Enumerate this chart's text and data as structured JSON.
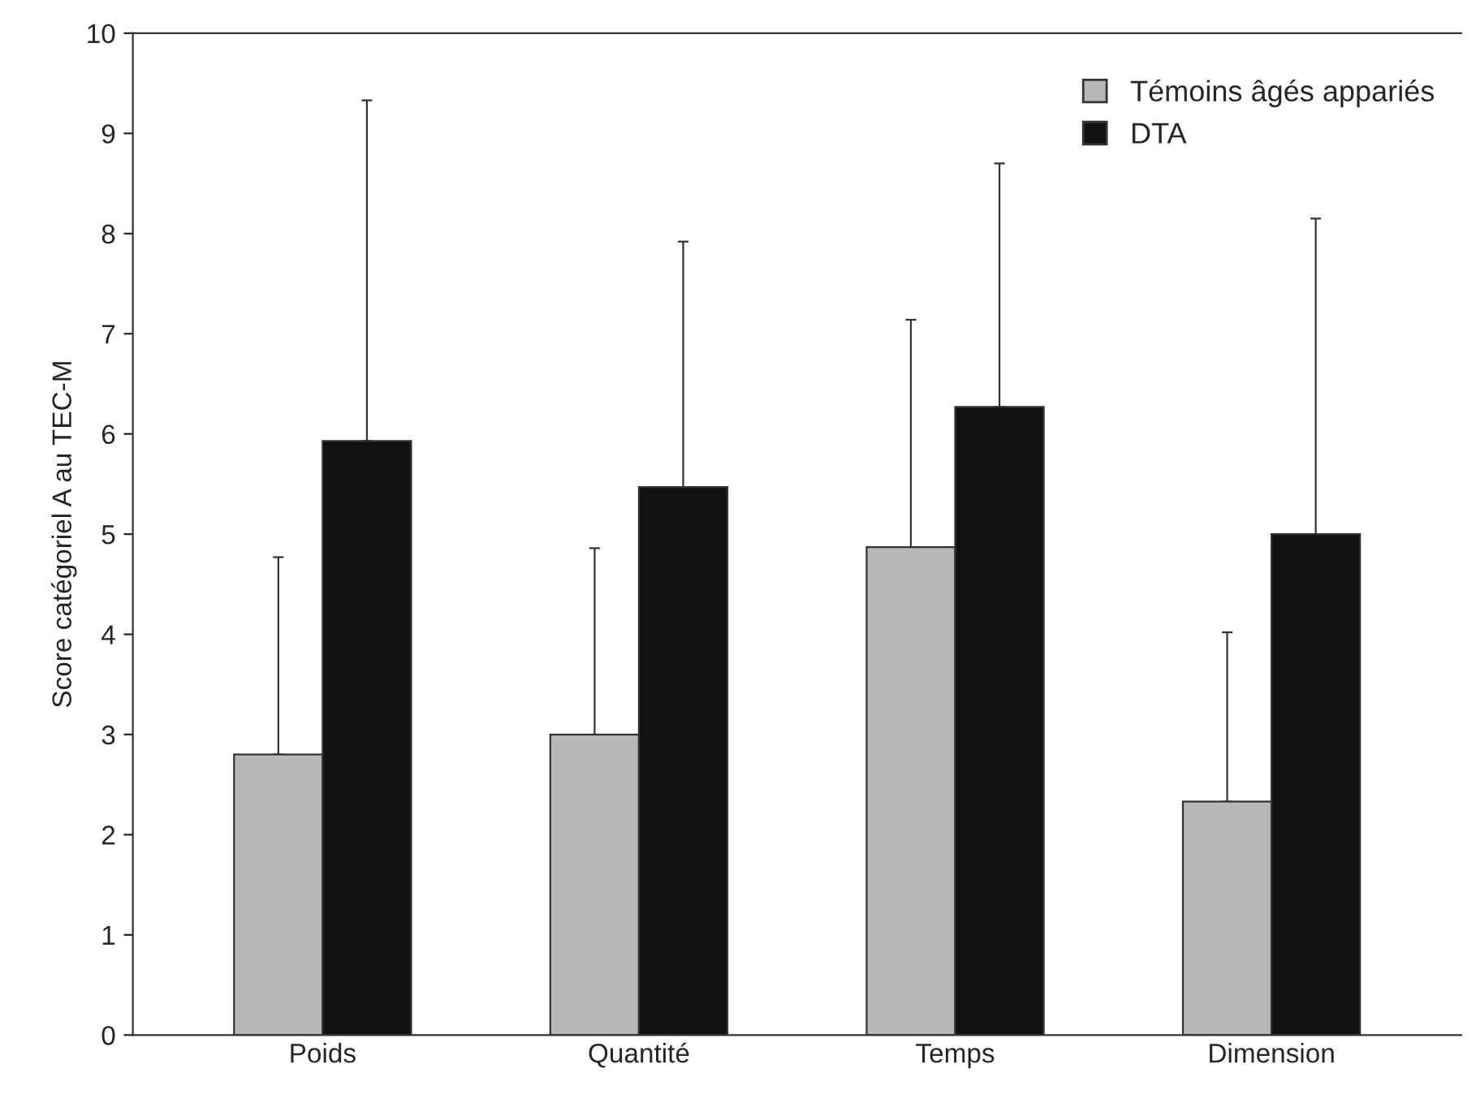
{
  "chart_data": {
    "type": "bar",
    "ylabel": "Score catégoriel A au TEC-M",
    "categories": [
      "Poids",
      "Quantité",
      "Temps",
      "Dimension"
    ],
    "series": [
      {
        "name": "Témoins âgés appariés",
        "color": "#b8b8b8",
        "values": [
          2.8,
          3.0,
          4.87,
          2.33
        ],
        "errors": [
          [
            2.8,
            4.77
          ],
          [
            3.0,
            4.86
          ],
          [
            4.87,
            7.14
          ],
          [
            2.33,
            4.02
          ]
        ]
      },
      {
        "name": "DTA",
        "color": "#111111",
        "values": [
          5.93,
          5.47,
          6.27,
          5.0
        ],
        "errors": [
          [
            5.93,
            9.33
          ],
          [
            5.47,
            7.92
          ],
          [
            6.27,
            8.7
          ],
          [
            5.0,
            8.15
          ]
        ]
      }
    ],
    "ylim": [
      0,
      10
    ],
    "yticks": [
      0,
      1,
      2,
      3,
      4,
      5,
      6,
      7,
      8,
      9,
      10
    ],
    "grid": false,
    "legend": "top right"
  }
}
